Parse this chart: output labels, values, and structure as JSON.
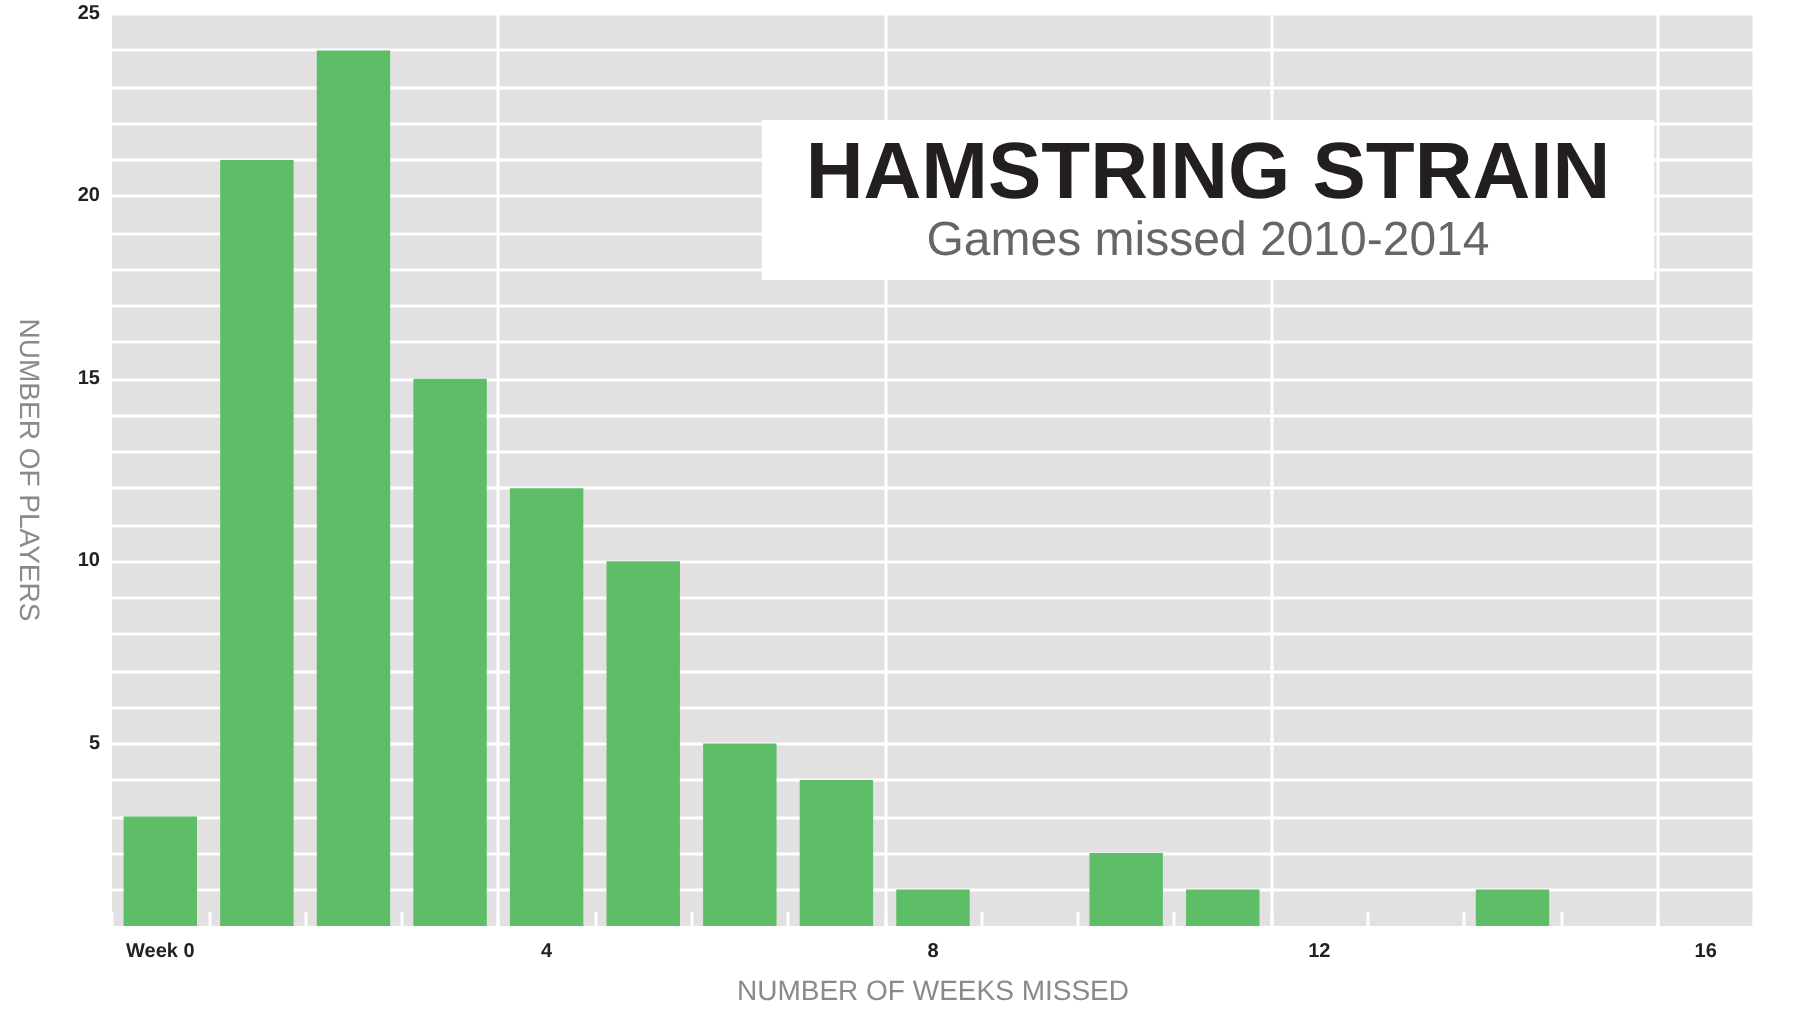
{
  "chart_data": {
    "type": "bar",
    "title": "HAMSTRING STRAIN",
    "subtitle": "Games missed 2010-2014",
    "xlabel": "NUMBER OF WEEKS MISSED",
    "ylabel": "NUMBER OF PLAYERS",
    "categories": [
      "Week 0",
      null,
      null,
      null,
      "4",
      null,
      null,
      null,
      "8",
      null,
      null,
      null,
      "12",
      null,
      null,
      null,
      "16"
    ],
    "values": [
      3,
      21,
      24,
      15,
      12,
      10,
      5,
      4,
      1,
      0,
      2,
      1,
      0,
      0,
      1,
      0,
      0
    ],
    "color": "#5ebd67",
    "ylim": [
      0,
      25
    ],
    "yticks": [
      {
        "value": 1,
        "label": null
      },
      {
        "value": 2,
        "label": null
      },
      {
        "value": 3,
        "label": null
      },
      {
        "value": 4,
        "label": null
      },
      5,
      {
        "value": 6,
        "label": null
      },
      {
        "value": 7,
        "label": null
      },
      {
        "value": 8,
        "label": null
      },
      {
        "value": 9,
        "label": null
      },
      10,
      {
        "value": 11,
        "label": null
      },
      {
        "value": 12,
        "label": null
      },
      {
        "value": 13,
        "label": null
      },
      {
        "value": 14,
        "label": null
      },
      15,
      {
        "value": 16,
        "label": null
      },
      {
        "value": 17,
        "label": null
      },
      {
        "value": 18,
        "label": null
      },
      {
        "value": 19,
        "label": null
      },
      20,
      {
        "value": 21,
        "label": null
      },
      {
        "value": 22,
        "label": null
      },
      {
        "value": 23,
        "label": null
      },
      {
        "value": 24,
        "label": null
      },
      25
    ],
    "grid": true
  }
}
